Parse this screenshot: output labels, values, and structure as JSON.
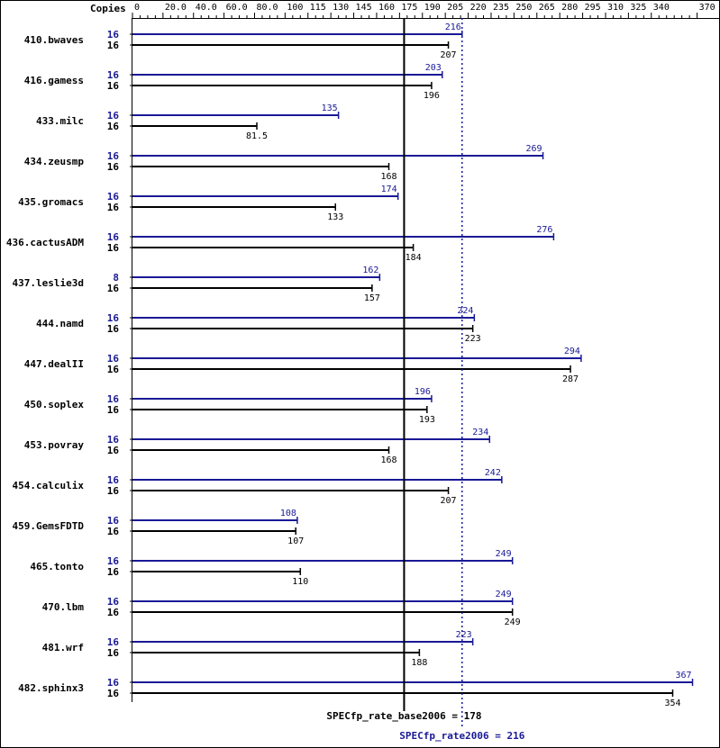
{
  "chart_data": {
    "type": "bar",
    "header_label": "Copies",
    "x_ticks": [
      "0",
      "20.0",
      "40.0",
      "60.0",
      "80.0",
      "100",
      "115",
      "130",
      "145",
      "160",
      "175",
      "190",
      "205",
      "220",
      "235",
      "250",
      "265",
      "280",
      "295",
      "310",
      "325",
      "340",
      "370"
    ],
    "x_tick_values": [
      0,
      20,
      40,
      60,
      80,
      100,
      115,
      130,
      145,
      160,
      175,
      190,
      205,
      220,
      235,
      250,
      265,
      280,
      295,
      310,
      325,
      340,
      370
    ],
    "xlim": [
      0,
      370
    ],
    "categories": [
      "410.bwaves",
      "416.gamess",
      "433.milc",
      "434.zeusmp",
      "435.gromacs",
      "436.cactusADM",
      "437.leslie3d",
      "444.namd",
      "447.dealII",
      "450.soplex",
      "453.povray",
      "454.calculix",
      "459.GemsFDTD",
      "465.tonto",
      "470.lbm",
      "481.wrf",
      "482.sphinx3"
    ],
    "series": [
      {
        "name": "SPECfp_rate2006",
        "color": "#191996",
        "copies": [
          "16",
          "16",
          "16",
          "16",
          "16",
          "16",
          "8",
          "16",
          "16",
          "16",
          "16",
          "16",
          "16",
          "16",
          "16",
          "16",
          "16"
        ],
        "values": [
          216,
          203,
          135,
          269,
          174,
          276,
          162,
          224,
          294,
          196,
          234,
          242,
          108,
          249,
          249,
          223,
          367
        ],
        "labels": [
          "216",
          "203",
          "135",
          "269",
          "174",
          "276",
          "162",
          "224",
          "294",
          "196",
          "234",
          "242",
          "108",
          "249",
          "249",
          "223",
          "367"
        ]
      },
      {
        "name": "SPECfp_rate_base2006",
        "color": "#000000",
        "copies": [
          "16",
          "16",
          "16",
          "16",
          "16",
          "16",
          "16",
          "16",
          "16",
          "16",
          "16",
          "16",
          "16",
          "16",
          "16",
          "16",
          "16"
        ],
        "values": [
          207,
          196,
          81.5,
          168,
          133,
          184,
          157,
          223,
          287,
          193,
          168,
          207,
          107,
          110,
          249,
          188,
          354
        ],
        "labels": [
          "207",
          "196",
          "81.5",
          "168",
          "133",
          "184",
          "157",
          "223",
          "287",
          "193",
          "168",
          "207",
          "107",
          "110",
          "249",
          "188",
          "354"
        ]
      }
    ],
    "reference_lines": [
      {
        "label": "SPECfp_rate_base2006 = 178",
        "value": 178,
        "style": "solid",
        "color": "#000000"
      },
      {
        "label": "SPECfp_rate2006 = 216",
        "value": 216,
        "style": "dotted",
        "color": "#191996"
      }
    ]
  }
}
